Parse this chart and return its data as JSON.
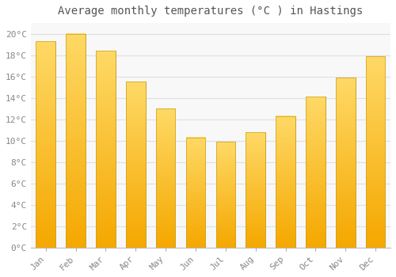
{
  "title": "Average monthly temperatures (°C ) in Hastings",
  "months": [
    "Jan",
    "Feb",
    "Mar",
    "Apr",
    "May",
    "Jun",
    "Jul",
    "Aug",
    "Sep",
    "Oct",
    "Nov",
    "Dec"
  ],
  "values": [
    19.3,
    20.0,
    18.4,
    15.5,
    13.0,
    10.3,
    9.9,
    10.8,
    12.3,
    14.1,
    15.9,
    17.9
  ],
  "bar_color_bottom": "#F5A800",
  "bar_color_top": "#FFD966",
  "bar_edge_color": "#C8A020",
  "ylim": [
    0,
    21
  ],
  "yticks": [
    0,
    2,
    4,
    6,
    8,
    10,
    12,
    14,
    16,
    18,
    20
  ],
  "ytick_labels": [
    "0°C",
    "2°C",
    "4°C",
    "6°C",
    "8°C",
    "10°C",
    "12°C",
    "14°C",
    "16°C",
    "18°C",
    "20°C"
  ],
  "background_color": "#ffffff",
  "plot_bg_color": "#f8f8f8",
  "grid_color": "#e0e0e0",
  "title_fontsize": 10,
  "tick_fontsize": 8,
  "font_family": "monospace",
  "tick_color": "#888888",
  "bar_width": 0.65
}
